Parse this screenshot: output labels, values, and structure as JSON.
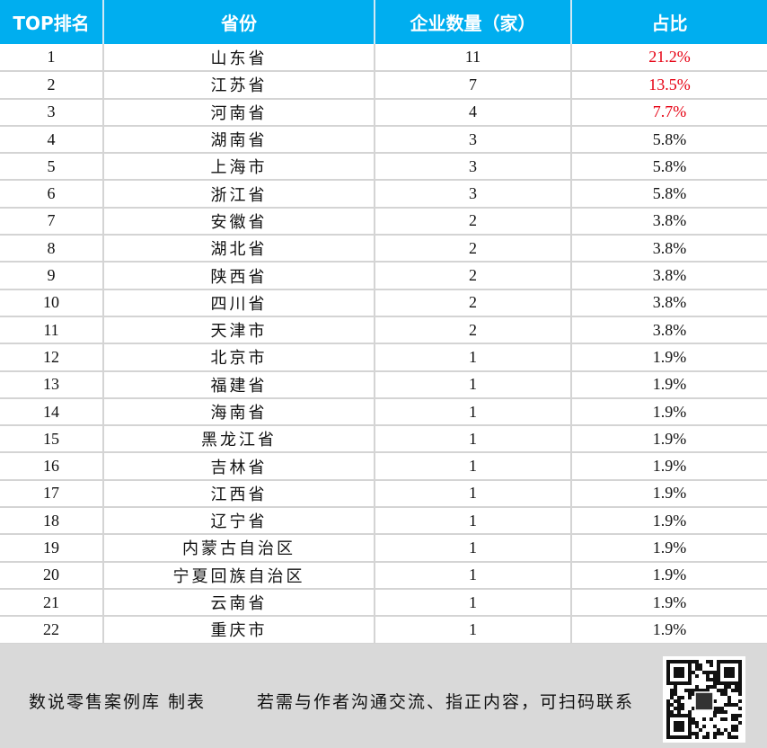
{
  "table": {
    "headers": [
      "TOP排名",
      "省份",
      "企业数量（家）",
      "占比"
    ],
    "rows": [
      [
        "1",
        "山东省",
        "11",
        "21.2%"
      ],
      [
        "2",
        "江苏省",
        "7",
        "13.5%"
      ],
      [
        "3",
        "河南省",
        "4",
        "7.7%"
      ],
      [
        "4",
        "湖南省",
        "3",
        "5.8%"
      ],
      [
        "5",
        "上海市",
        "3",
        "5.8%"
      ],
      [
        "6",
        "浙江省",
        "3",
        "5.8%"
      ],
      [
        "7",
        "安徽省",
        "2",
        "3.8%"
      ],
      [
        "8",
        "湖北省",
        "2",
        "3.8%"
      ],
      [
        "9",
        "陕西省",
        "2",
        "3.8%"
      ],
      [
        "10",
        "四川省",
        "2",
        "3.8%"
      ],
      [
        "11",
        "天津市",
        "2",
        "3.8%"
      ],
      [
        "12",
        "北京市",
        "1",
        "1.9%"
      ],
      [
        "13",
        "福建省",
        "1",
        "1.9%"
      ],
      [
        "14",
        "海南省",
        "1",
        "1.9%"
      ],
      [
        "15",
        "黑龙江省",
        "1",
        "1.9%"
      ],
      [
        "16",
        "吉林省",
        "1",
        "1.9%"
      ],
      [
        "17",
        "江西省",
        "1",
        "1.9%"
      ],
      [
        "18",
        "辽宁省",
        "1",
        "1.9%"
      ],
      [
        "19",
        "内蒙古自治区",
        "1",
        "1.9%"
      ],
      [
        "20",
        "宁夏回族自治区",
        "1",
        "1.9%"
      ],
      [
        "21",
        "云南省",
        "1",
        "1.9%"
      ],
      [
        "22",
        "重庆市",
        "1",
        "1.9%"
      ]
    ],
    "highlight_rows": 3,
    "colors": {
      "header_bg": "#00aeef",
      "highlight": "#e60012",
      "footer_bg": "#d9d9d9"
    }
  },
  "footer": {
    "credit": "数说零售案例库 制表",
    "contact": "若需与作者沟通交流、指正内容，可扫码联系",
    "qr_icon": "qr-code-icon"
  }
}
